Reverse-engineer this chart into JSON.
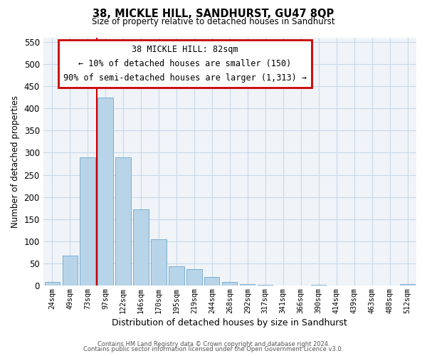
{
  "title": "38, MICKLE HILL, SANDHURST, GU47 8QP",
  "subtitle": "Size of property relative to detached houses in Sandhurst",
  "xlabel": "Distribution of detached houses by size in Sandhurst",
  "ylabel": "Number of detached properties",
  "bar_labels": [
    "24sqm",
    "49sqm",
    "73sqm",
    "97sqm",
    "122sqm",
    "146sqm",
    "170sqm",
    "195sqm",
    "219sqm",
    "244sqm",
    "268sqm",
    "292sqm",
    "317sqm",
    "341sqm",
    "366sqm",
    "390sqm",
    "414sqm",
    "439sqm",
    "463sqm",
    "488sqm",
    "512sqm"
  ],
  "bar_values": [
    8,
    68,
    290,
    425,
    290,
    173,
    105,
    44,
    38,
    20,
    8,
    4,
    2,
    0,
    0,
    2,
    0,
    0,
    0,
    0,
    3
  ],
  "bar_color": "#b8d4e8",
  "bar_edge_color": "#7aafd4",
  "vline_x": 2.5,
  "vline_color": "#cc0000",
  "annotation_title": "38 MICKLE HILL: 82sqm",
  "annotation_line1": "← 10% of detached houses are smaller (150)",
  "annotation_line2": "90% of semi-detached houses are larger (1,313) →",
  "annotation_box_color": "#ffffff",
  "annotation_box_edge": "#cc0000",
  "ylim": [
    0,
    560
  ],
  "yticks": [
    0,
    50,
    100,
    150,
    200,
    250,
    300,
    350,
    400,
    450,
    500,
    550
  ],
  "footnote1": "Contains HM Land Registry data © Crown copyright and database right 2024.",
  "footnote2": "Contains public sector information licensed under the Open Government Licence v3.0."
}
